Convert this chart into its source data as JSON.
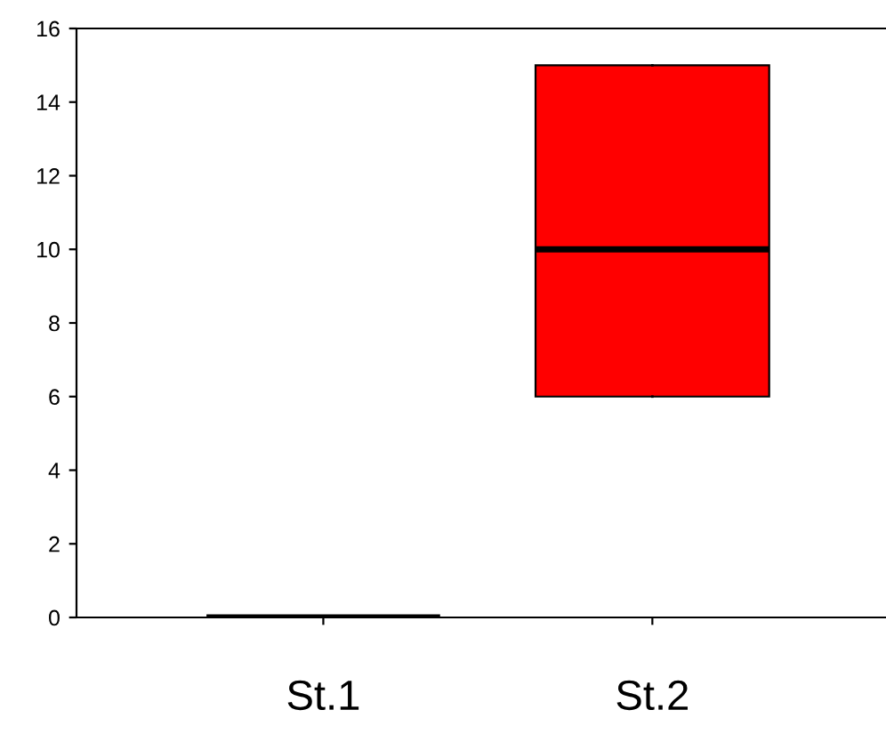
{
  "chart_data": {
    "type": "box",
    "categories": [
      "St.1",
      "St.2"
    ],
    "boxes": [
      {
        "low": 0,
        "q1": 0,
        "median": 0,
        "q3": 0,
        "high": 0
      },
      {
        "low": 6,
        "q1": 6,
        "median": 10,
        "q3": 15,
        "high": 15
      }
    ],
    "colors": [
      "#000000",
      "#ff0000"
    ],
    "ylim": [
      0,
      16
    ],
    "yticks": [
      0,
      2,
      4,
      6,
      8,
      10,
      12,
      14,
      16
    ],
    "grid": false,
    "legend": false
  }
}
